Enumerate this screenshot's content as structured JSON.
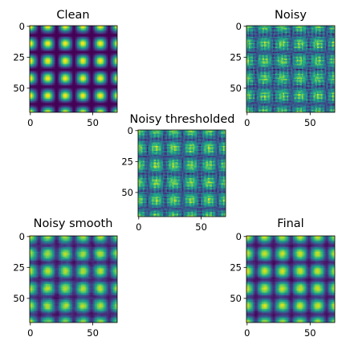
{
  "chart_data": [
    {
      "type": "heatmap",
      "title": "Clean",
      "pattern": "clean",
      "size": 70,
      "period": 28,
      "colormap": "viridis",
      "x_ticks": [
        "0",
        "50"
      ],
      "y_ticks": [
        "0",
        "25",
        "50"
      ],
      "x_tick_values": [
        0,
        50
      ],
      "y_tick_values": [
        0,
        25,
        50
      ]
    },
    {
      "type": "heatmap",
      "title": "Noisy",
      "pattern": "noisy",
      "size": 70,
      "period": 28,
      "colormap": "viridis",
      "x_ticks": [
        "0",
        "50"
      ],
      "y_ticks": [
        "0",
        "25",
        "50"
      ],
      "x_tick_values": [
        0,
        50
      ],
      "y_tick_values": [
        0,
        25,
        50
      ]
    },
    {
      "type": "heatmap",
      "title": "Noisy thresholded",
      "pattern": "thresholded",
      "size": 70,
      "period": 28,
      "colormap": "viridis",
      "x_ticks": [
        "0",
        "50"
      ],
      "y_ticks": [
        "0",
        "25",
        "50"
      ],
      "x_tick_values": [
        0,
        50
      ],
      "y_tick_values": [
        0,
        25,
        50
      ]
    },
    {
      "type": "heatmap",
      "title": "Noisy smooth",
      "pattern": "smooth",
      "size": 70,
      "period": 28,
      "colormap": "viridis",
      "x_ticks": [
        "0",
        "50"
      ],
      "y_ticks": [
        "0",
        "25",
        "50"
      ],
      "x_tick_values": [
        0,
        50
      ],
      "y_tick_values": [
        0,
        25,
        50
      ]
    },
    {
      "type": "heatmap",
      "title": "Final",
      "pattern": "final",
      "size": 70,
      "period": 28,
      "colormap": "viridis",
      "x_ticks": [
        "0",
        "50"
      ],
      "y_ticks": [
        "0",
        "25",
        "50"
      ],
      "x_tick_values": [
        0,
        50
      ],
      "y_tick_values": [
        0,
        25,
        50
      ]
    }
  ]
}
